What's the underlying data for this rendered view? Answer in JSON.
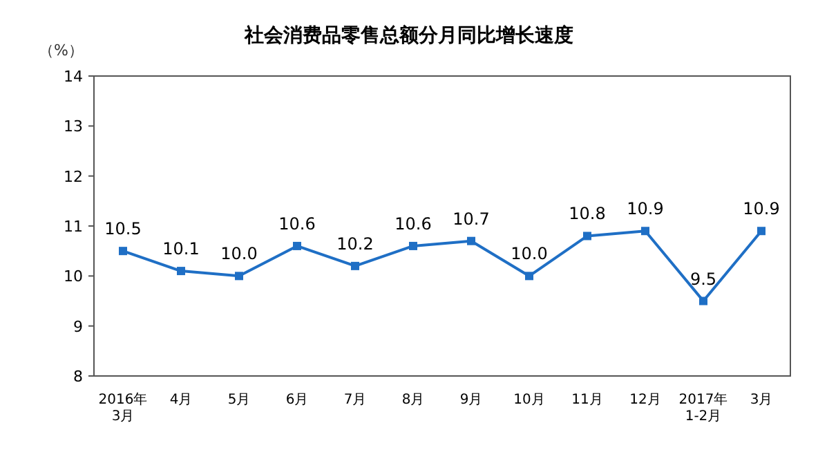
{
  "chart_data": {
    "type": "line",
    "title": "社会消费品零售总额分月同比增长速度",
    "ylabel": "（%）",
    "categories": [
      "2016年\n3月",
      "4月",
      "5月",
      "6月",
      "7月",
      "8月",
      "9月",
      "10月",
      "11月",
      "12月",
      "2017年\n1-2月",
      "3月"
    ],
    "series": [
      {
        "color": "#1f6fc5",
        "values": [
          10.5,
          10.1,
          10.0,
          10.6,
          10.2,
          10.6,
          10.7,
          10.0,
          10.8,
          10.9,
          9.5,
          10.9
        ],
        "value_labels": [
          "10.5",
          "10.1",
          "10.0",
          "10.6",
          "10.2",
          "10.6",
          "10.7",
          "10.0",
          "10.8",
          "10.9",
          "9.5",
          "10.9"
        ]
      }
    ],
    "ylim": [
      8,
      14
    ],
    "yticks": [
      8,
      9,
      10,
      11,
      12,
      13,
      14
    ],
    "marker": "square",
    "line_style": "solid",
    "grid": false
  }
}
